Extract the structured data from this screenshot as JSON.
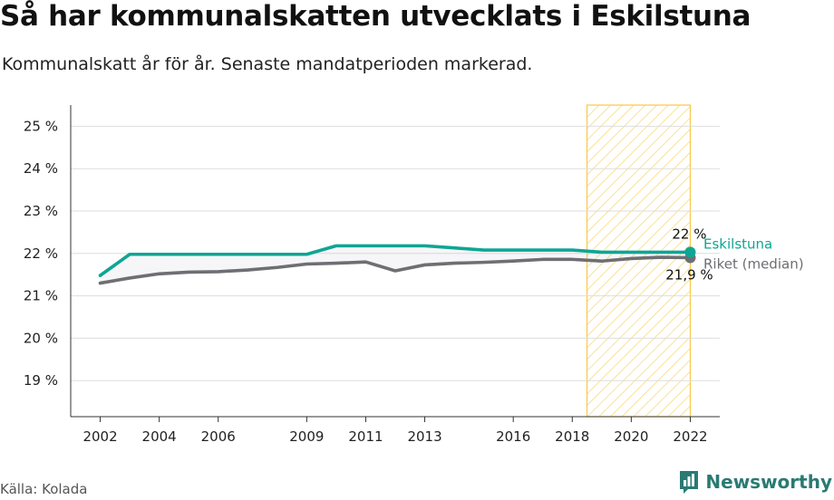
{
  "header": {
    "title": "Så har kommunalskatten utvecklats i Eskilstuna",
    "subtitle": "Kommunalskatt år för år. Senaste mandatperioden markerad."
  },
  "footer": {
    "source": "Källa: Kolada",
    "brand": "Newsworthy"
  },
  "colors": {
    "eskilstuna": "#0fa594",
    "riket": "#6e6e73",
    "highlight": "#f7c948",
    "grid": "#dddddd"
  },
  "icons": {
    "brand_logo": "bar-chart-speech-bubble-icon"
  },
  "chart_data": {
    "type": "line",
    "title": "Så har kommunalskatten utvecklats i Eskilstuna",
    "subtitle": "Kommunalskatt år för år. Senaste mandatperioden markerad.",
    "xlim": [
      2001,
      2023
    ],
    "ylim": [
      18.15,
      25.5
    ],
    "x_ticks": [
      2002,
      2004,
      2006,
      2009,
      2011,
      2013,
      2016,
      2018,
      2020,
      2022
    ],
    "y_ticks": [
      19,
      20,
      21,
      22,
      23,
      24,
      25
    ],
    "y_tick_labels": [
      "19 %",
      "20 %",
      "21 %",
      "22 %",
      "23 %",
      "24 %",
      "25 %"
    ],
    "grid": "horizontal",
    "highlight_period": [
      2018.5,
      2022
    ],
    "x": [
      2002,
      2003,
      2004,
      2005,
      2006,
      2007,
      2008,
      2009,
      2010,
      2011,
      2012,
      2013,
      2014,
      2015,
      2016,
      2017,
      2018,
      2019,
      2020,
      2021,
      2022
    ],
    "series": [
      {
        "name": "Eskilstuna",
        "color": "#0fa594",
        "values": [
          21.48,
          21.98,
          21.98,
          21.98,
          21.98,
          21.98,
          21.98,
          21.98,
          22.18,
          22.18,
          22.18,
          22.18,
          22.13,
          22.08,
          22.08,
          22.08,
          22.08,
          22.03,
          22.03,
          22.03,
          22.03
        ],
        "end_label": "22 %"
      },
      {
        "name": "Riket (median)",
        "color": "#6e6e73",
        "values": [
          21.3,
          21.42,
          21.52,
          21.56,
          21.57,
          21.61,
          21.67,
          21.75,
          21.77,
          21.8,
          21.59,
          21.73,
          21.77,
          21.79,
          21.82,
          21.86,
          21.86,
          21.82,
          21.88,
          21.91,
          21.9
        ],
        "end_label": "21,9 %"
      }
    ]
  }
}
